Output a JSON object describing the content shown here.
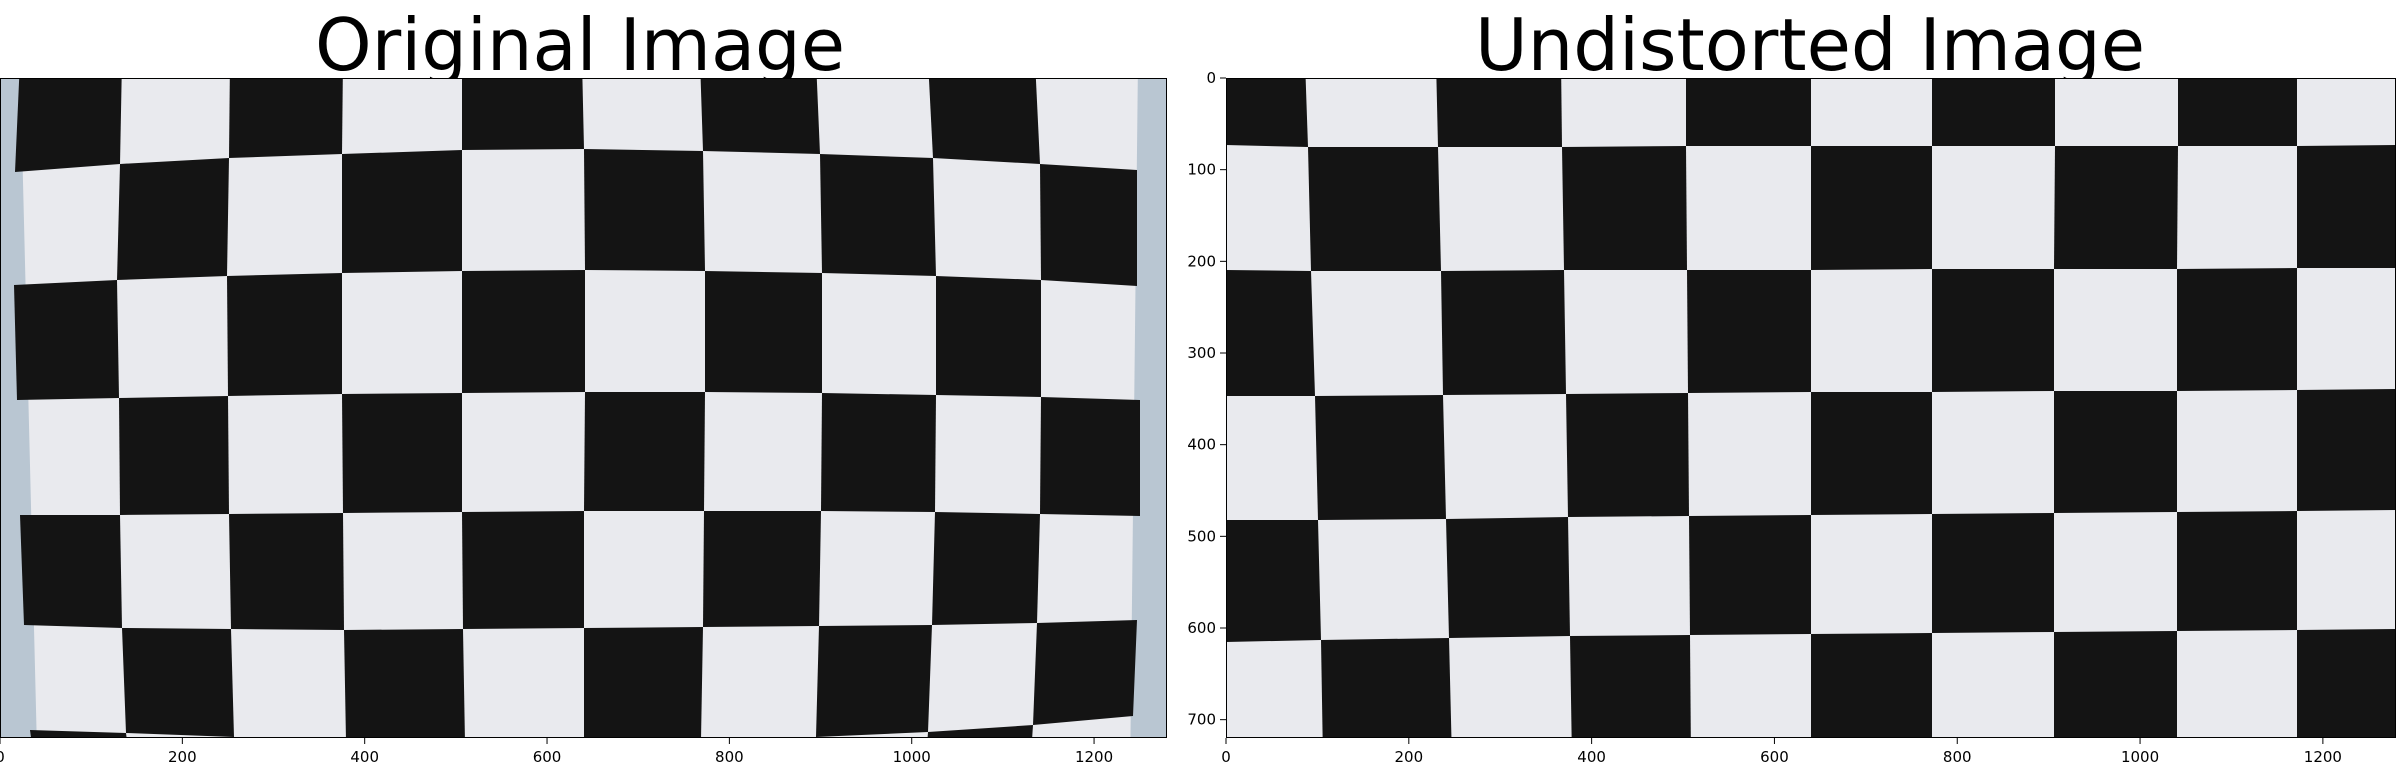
{
  "chart_data": [
    {
      "type": "image",
      "title": "Original Image",
      "xlabel": "",
      "ylabel": "",
      "xlim": [
        0,
        1280
      ],
      "ylim": [
        720,
        0
      ],
      "xticks": [
        0,
        200,
        400,
        600,
        800,
        1000,
        1200
      ],
      "yticks": [],
      "content": "checkerboard-distorted",
      "board": {
        "cols": 10,
        "rows": 7,
        "top_left": "black"
      }
    },
    {
      "type": "image",
      "title": "Undistorted Image",
      "xlabel": "",
      "ylabel": "",
      "xlim": [
        0,
        1280
      ],
      "ylim": [
        720,
        0
      ],
      "xticks": [
        0,
        200,
        400,
        600,
        800,
        1000,
        1200
      ],
      "yticks": [
        0,
        100,
        200,
        300,
        400,
        500,
        600,
        700
      ],
      "content": "checkerboard-undistorted",
      "board": {
        "cols": 10,
        "rows": 7,
        "top_left": "black"
      }
    }
  ],
  "colors": {
    "dark": "#141414",
    "light": "#e9eaee",
    "edge": "#b9c6d2"
  }
}
